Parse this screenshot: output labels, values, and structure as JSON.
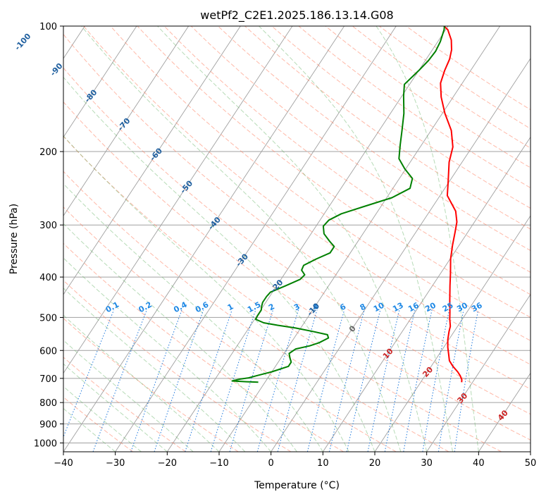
{
  "chart_data": {
    "type": "line",
    "diagram": "skew-t",
    "title": "wetPf2_C2E1.2025.186.13.14.G08",
    "xlabel": "Temperature (°C)",
    "ylabel": "Pressure (hPa)",
    "xlim": [
      -40,
      50
    ],
    "ylim": [
      1050,
      100
    ],
    "y_scale": "log",
    "x_ticks": [
      -40,
      -30,
      -20,
      -10,
      0,
      10,
      20,
      30,
      40,
      50
    ],
    "x_tick_labels": [
      "−40",
      "−30",
      "−20",
      "−10",
      "0",
      "10",
      "20",
      "30",
      "40",
      "50"
    ],
    "y_ticks": [
      100,
      200,
      300,
      400,
      500,
      600,
      700,
      800,
      900,
      1000
    ],
    "y_tick_labels": [
      "100",
      "200",
      "300",
      "400",
      "500",
      "600",
      "700",
      "800",
      "900",
      "1000"
    ],
    "grid": true,
    "colors": {
      "temperature": "#ff0000",
      "dewpoint": "#008000",
      "isotherm": "#a0a0a0",
      "dry_adiabat": "#ff8060",
      "moist_adiabat": "#60b060",
      "mixing_ratio": "#1e78dc",
      "isotherm_label": "#1f5f9f",
      "mixing_label": "#1e88e5",
      "wet_bulb_label": "#cc2222"
    },
    "series": [
      {
        "key": "temperature",
        "points": [
          [
            27.9,
            715
          ],
          [
            27.6,
            705
          ],
          [
            26.8,
            690
          ],
          [
            25.8,
            675
          ],
          [
            24.2,
            655
          ],
          [
            22.8,
            635
          ],
          [
            21.8,
            612
          ],
          [
            20.8,
            590
          ],
          [
            19.8,
            565
          ],
          [
            19.0,
            540
          ],
          [
            18.6,
            525
          ],
          [
            17.6,
            505
          ],
          [
            16.7,
            485
          ],
          [
            15.2,
            455
          ],
          [
            13.4,
            420
          ],
          [
            11.9,
            392
          ],
          [
            10.1,
            362
          ],
          [
            8.7,
            335
          ],
          [
            7.6,
            313
          ],
          [
            6.6,
            295
          ],
          [
            5.0,
            278
          ],
          [
            1.4,
            255
          ],
          [
            -0.3,
            235
          ],
          [
            -2.5,
            212
          ],
          [
            -3.7,
            195
          ],
          [
            -6.1,
            178
          ],
          [
            -9.5,
            162
          ],
          [
            -12.3,
            148
          ],
          [
            -14.2,
            137
          ],
          [
            -15.0,
            128
          ],
          [
            -15.5,
            120
          ],
          [
            -16.3,
            114
          ],
          [
            -17.6,
            108
          ],
          [
            -19.6,
            102
          ],
          [
            -20.8,
            100
          ]
        ]
      },
      {
        "key": "dewpoint",
        "points": [
          [
            -11.3,
            715
          ],
          [
            -13.6,
            713
          ],
          [
            -16.5,
            710
          ],
          [
            -15.2,
            703
          ],
          [
            -13.7,
            698
          ],
          [
            -12.5,
            690
          ],
          [
            -10.0,
            675
          ],
          [
            -7.5,
            655
          ],
          [
            -7.5,
            640
          ],
          [
            -8.3,
            625
          ],
          [
            -9.0,
            610
          ],
          [
            -8.3,
            595
          ],
          [
            -6.0,
            585
          ],
          [
            -4.6,
            575
          ],
          [
            -3.4,
            560
          ],
          [
            -4.0,
            550
          ],
          [
            -7.3,
            540
          ],
          [
            -11.0,
            530
          ],
          [
            -14.8,
            522
          ],
          [
            -17.8,
            515
          ],
          [
            -19.8,
            505
          ],
          [
            -19.9,
            495
          ],
          [
            -19.9,
            480
          ],
          [
            -20.3,
            470
          ],
          [
            -20.6,
            460
          ],
          [
            -20.6,
            445
          ],
          [
            -20.4,
            435
          ],
          [
            -18.3,
            420
          ],
          [
            -16.3,
            405
          ],
          [
            -16.0,
            395
          ],
          [
            -17.2,
            385
          ],
          [
            -17.4,
            375
          ],
          [
            -15.8,
            362
          ],
          [
            -13.9,
            350
          ],
          [
            -13.9,
            338
          ],
          [
            -15.5,
            328
          ],
          [
            -17.5,
            315
          ],
          [
            -18.6,
            302
          ],
          [
            -18.3,
            292
          ],
          [
            -16.7,
            282
          ],
          [
            -13.6,
            272
          ],
          [
            -9.0,
            258
          ],
          [
            -6.7,
            245
          ],
          [
            -7.5,
            232
          ],
          [
            -10.2,
            220
          ],
          [
            -12.6,
            208
          ],
          [
            -14.1,
            193
          ],
          [
            -15.6,
            178
          ],
          [
            -17.4,
            162
          ],
          [
            -19.7,
            147
          ],
          [
            -21.0,
            138
          ],
          [
            -20.0,
            128
          ],
          [
            -19.4,
            121
          ],
          [
            -19.2,
            115
          ],
          [
            -19.5,
            109
          ],
          [
            -20.3,
            102
          ],
          [
            -20.7,
            100
          ]
        ]
      }
    ],
    "isotherm_labels": [
      "-100",
      "-90",
      "-80",
      "-70",
      "-60",
      "-50",
      "-40",
      "-30",
      "-20",
      "-10",
      "0",
      "10",
      "20",
      "30",
      "40"
    ],
    "isotherm_label_pressures": [
      109,
      127,
      147,
      172,
      203,
      243,
      297,
      364,
      420,
      478,
      532,
      610,
      675,
      780,
      858
    ],
    "mixing_ratio_labels": [
      "0.1",
      "0.2",
      "0.4",
      "0.6",
      "1",
      "1.5",
      "2",
      "3",
      "4",
      "6",
      "8",
      "10",
      "13",
      "16",
      "20",
      "25",
      "30",
      "36"
    ],
    "mixing_ratio_values": [
      0.1,
      0.2,
      0.4,
      0.6,
      1,
      1.5,
      2,
      3,
      4,
      6,
      8,
      10,
      13,
      16,
      20,
      25,
      30,
      36
    ],
    "mixing_ratio_label_pressure": 482
  }
}
